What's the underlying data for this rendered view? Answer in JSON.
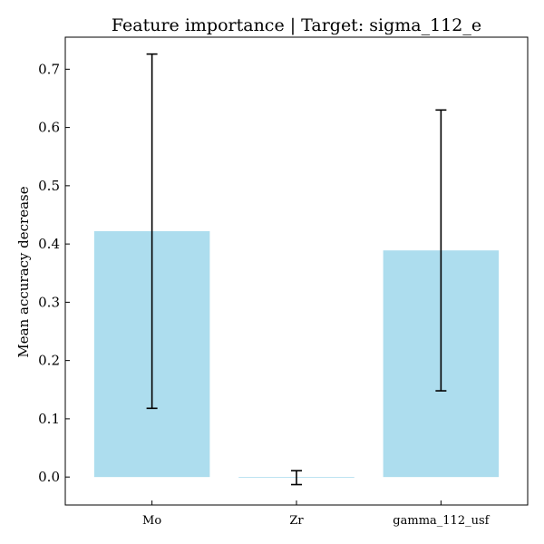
{
  "chart_data": {
    "type": "bar",
    "title": "Feature importance | Target: sigma_112_e",
    "xlabel": "",
    "ylabel": "Mean accuracy decrease",
    "categories": [
      "Mo",
      "Zr",
      "gamma_112_usf"
    ],
    "values": [
      0.422,
      -0.001,
      0.389
    ],
    "error": [
      0.304,
      0.012,
      0.241
    ],
    "ylim": [
      -0.048,
      0.755
    ],
    "yticks": [
      0.0,
      0.1,
      0.2,
      0.3,
      0.4,
      0.5,
      0.6,
      0.7
    ],
    "bar_color": "#ADDDEE",
    "error_color": "#000000",
    "grid": false,
    "legend": "none"
  }
}
